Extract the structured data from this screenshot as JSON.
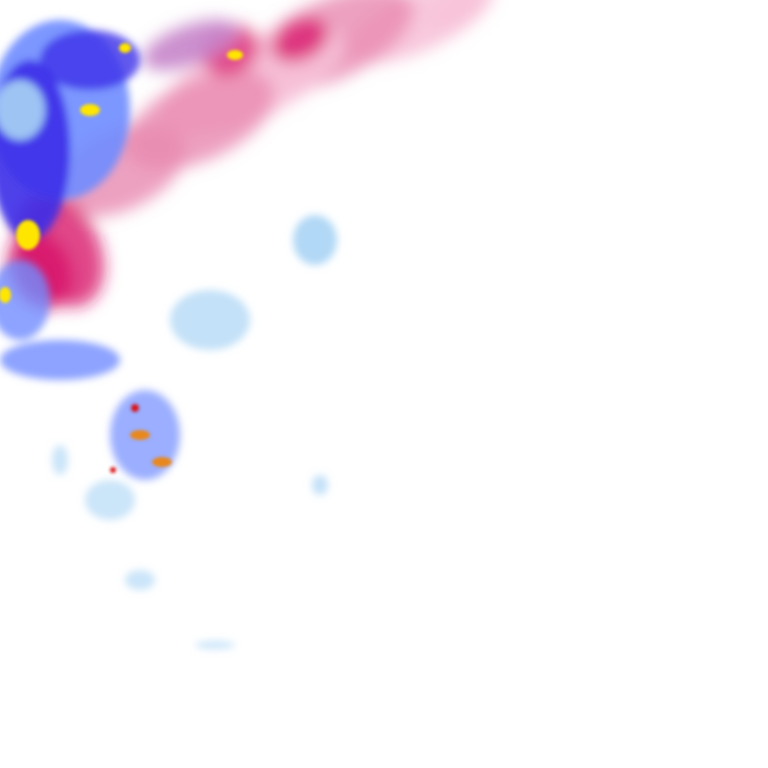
{
  "map": {
    "type": "precipitation-radar-tile",
    "colors": {
      "background": "#ffffff",
      "rain_light": "#a9d4f5",
      "rain_medium": "#6f8cff",
      "rain_heavy": "#3b2fe8",
      "rain_intense": "#ffe600",
      "rain_extreme": "#e8871e",
      "rain_core": "#d7191c",
      "snow_light": "#f7c2d8",
      "snow_medium": "#e889b0",
      "snow_heavy": "#d8156b",
      "mixed_hatch": "#9b7fe0"
    }
  }
}
